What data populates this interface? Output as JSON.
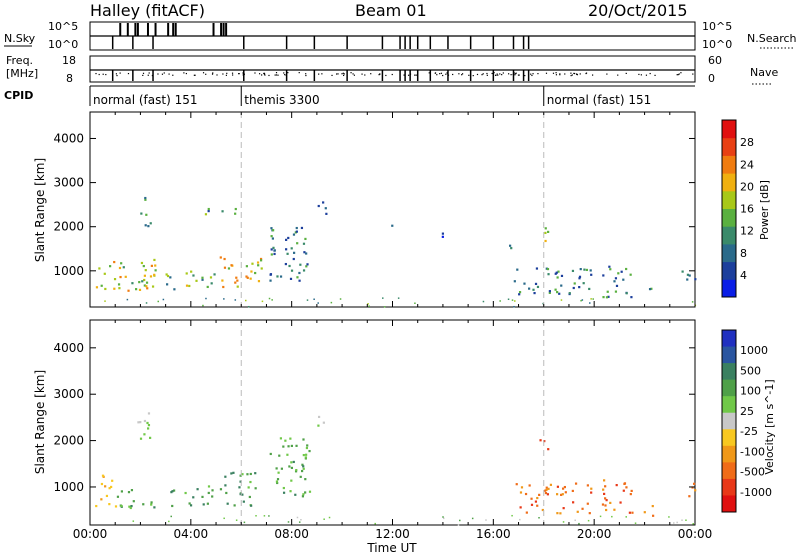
{
  "header": {
    "station": "Halley (fitACF)",
    "beam": "Beam 01",
    "date": "20/Oct/2015"
  },
  "nsky_panel": {
    "left_label": "N.Sky",
    "left_ticks": [
      "10^5",
      "10^0"
    ],
    "right_label": "N.Search",
    "right_ticks": [
      "10^5",
      "10^0"
    ]
  },
  "freq_panel": {
    "left_label_1": "Freq.",
    "left_label_2": "[MHz]",
    "left_ticks": [
      "18",
      "8"
    ],
    "right_label": "Nave",
    "right_ticks": [
      "60",
      "0"
    ]
  },
  "cpid_panel": {
    "label": "CPID",
    "segments": [
      {
        "start_hour": 0,
        "end_hour": 6,
        "label": "normal (fast) 151"
      },
      {
        "start_hour": 6,
        "end_hour": 18,
        "label": "themis 3300"
      },
      {
        "start_hour": 18,
        "end_hour": 24,
        "label": "normal (fast) 151"
      }
    ]
  },
  "colors": {
    "power": [
      "#0a1ee6",
      "#1c3f9c",
      "#2a6a8a",
      "#3a8a6a",
      "#5ab040",
      "#a8c818",
      "#f0b010",
      "#f07c10",
      "#e84014",
      "#e01010"
    ],
    "velocity": [
      "#2030c0",
      "#2a55a0",
      "#3a8060",
      "#4fa048",
      "#70c848",
      "#c8c8c8",
      "#f8c820",
      "#f09818",
      "#f06c18",
      "#e83818",
      "#e01010"
    ]
  },
  "chart_data": [
    {
      "type": "heatmap",
      "name": "power",
      "xlabel": "",
      "ylabel": "Slant Range [km]",
      "xlim": [
        0,
        24
      ],
      "ylim": [
        180,
        4600
      ],
      "yticks": [
        1000,
        2000,
        3000,
        4000
      ],
      "colorbar": {
        "label": "Power [dB]",
        "range": [
          0,
          32
        ],
        "ticks": [
          "4",
          "8",
          "12",
          "16",
          "20",
          "24",
          "28"
        ]
      },
      "regions": [
        {
          "t0": 0.2,
          "t1": 2.6,
          "r0": 550,
          "r1": 1300,
          "level": 0.55
        },
        {
          "t0": 2.8,
          "t1": 3.4,
          "r0": 600,
          "r1": 950,
          "level": 0.4
        },
        {
          "t0": 3.6,
          "t1": 4.9,
          "r0": 600,
          "r1": 1050,
          "level": 0.45
        },
        {
          "t0": 5.1,
          "t1": 6.8,
          "r0": 600,
          "r1": 1350,
          "level": 0.6
        },
        {
          "t0": 7.1,
          "t1": 8.7,
          "r0": 800,
          "r1": 2100,
          "level": 0.3
        },
        {
          "t0": 1.8,
          "t1": 2.4,
          "r0": 2000,
          "r1": 2700,
          "level": 0.3
        },
        {
          "t0": 4.4,
          "t1": 5.8,
          "r0": 2300,
          "r1": 2500,
          "level": 0.35
        },
        {
          "t0": 9.0,
          "t1": 9.5,
          "r0": 2300,
          "r1": 2600,
          "level": 0.2
        },
        {
          "t0": 11.7,
          "t1": 12.0,
          "r0": 2000,
          "r1": 2100,
          "level": 0.2
        },
        {
          "t0": 13.7,
          "t1": 14.0,
          "r0": 1600,
          "r1": 2000,
          "level": 0.15
        },
        {
          "t0": 16.5,
          "t1": 16.8,
          "r0": 1400,
          "r1": 1700,
          "level": 0.2
        },
        {
          "t0": 17.8,
          "t1": 18.2,
          "r0": 1600,
          "r1": 2100,
          "level": 0.5
        },
        {
          "t0": 16.8,
          "t1": 20.0,
          "r0": 450,
          "r1": 1100,
          "level": 0.3
        },
        {
          "t0": 20.3,
          "t1": 21.5,
          "r0": 400,
          "r1": 1200,
          "level": 0.3
        },
        {
          "t0": 21.8,
          "t1": 22.3,
          "r0": 400,
          "r1": 700,
          "level": 0.3
        },
        {
          "t0": 23.4,
          "t1": 24.0,
          "r0": 800,
          "r1": 1100,
          "level": 0.3
        }
      ]
    },
    {
      "type": "heatmap",
      "name": "velocity",
      "xlabel": "Time UT",
      "ylabel": "Slant Range [km]",
      "xlim": [
        0,
        24
      ],
      "ylim": [
        180,
        4600
      ],
      "x_tick_labels": [
        "00:00",
        "04:00",
        "08:00",
        "12:00",
        "16:00",
        "20:00",
        "00:00"
      ],
      "yticks": [
        1000,
        2000,
        3000,
        4000
      ],
      "colorbar": {
        "label": "Velocity [m s^-1]",
        "ticks": [
          "1000",
          "500",
          "100",
          "25",
          "-25",
          "-100",
          "-500",
          "-1000"
        ]
      },
      "regions": [
        {
          "t0": 0.2,
          "t1": 1.0,
          "r0": 600,
          "r1": 1300,
          "level": 0.65
        },
        {
          "t0": 1.0,
          "t1": 2.6,
          "r0": 550,
          "r1": 1000,
          "level": 0.3
        },
        {
          "t0": 2.8,
          "t1": 3.4,
          "r0": 600,
          "r1": 950,
          "level": 0.3
        },
        {
          "t0": 3.6,
          "t1": 4.9,
          "r0": 600,
          "r1": 1050,
          "level": 0.3
        },
        {
          "t0": 5.1,
          "t1": 6.8,
          "r0": 600,
          "r1": 1350,
          "level": 0.3
        },
        {
          "t0": 7.1,
          "t1": 8.7,
          "r0": 800,
          "r1": 2100,
          "level": 0.35
        },
        {
          "t0": 1.8,
          "t1": 2.4,
          "r0": 2000,
          "r1": 2700,
          "level": 0.45
        },
        {
          "t0": 9.0,
          "t1": 9.5,
          "r0": 2300,
          "r1": 2600,
          "level": 0.45
        },
        {
          "t0": 17.8,
          "t1": 18.2,
          "r0": 1600,
          "r1": 2100,
          "level": 0.8
        },
        {
          "t0": 16.8,
          "t1": 20.0,
          "r0": 450,
          "r1": 1100,
          "level": 0.75
        },
        {
          "t0": 20.3,
          "t1": 21.5,
          "r0": 400,
          "r1": 1200,
          "level": 0.75
        },
        {
          "t0": 21.8,
          "t1": 22.3,
          "r0": 400,
          "r1": 700,
          "level": 0.75
        },
        {
          "t0": 23.4,
          "t1": 24.0,
          "r0": 800,
          "r1": 1100,
          "level": 0.75
        }
      ]
    }
  ]
}
